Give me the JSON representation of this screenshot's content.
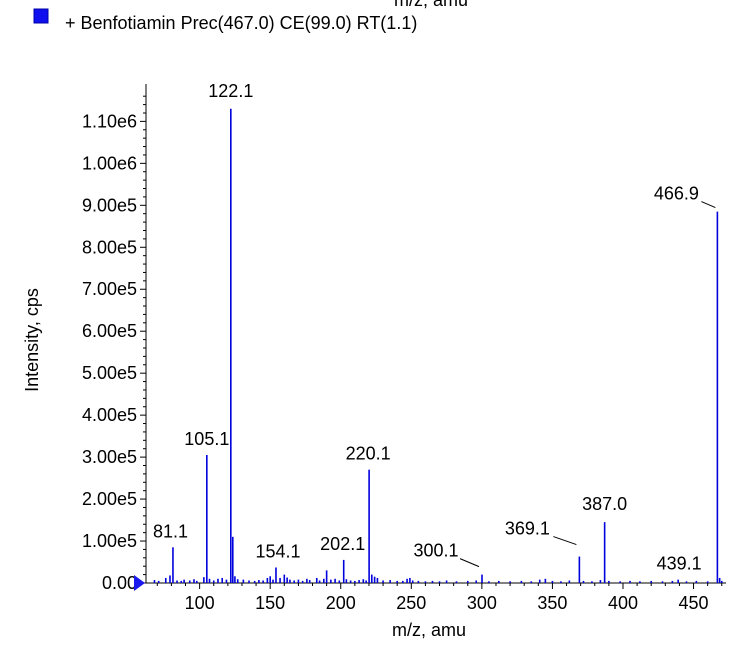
{
  "chart_data": {
    "type": "bar",
    "title_top_fragment": "m/z, amu",
    "legend_entries": [
      "+ Benfotiamin Prec(467.0) CE(99.0) RT(1.1)"
    ],
    "legend_placement": "top-left",
    "xlabel": "m/z, amu",
    "ylabel": "Intensity, cps",
    "xlim": [
      62,
      473
    ],
    "ylim": [
      0,
      1170000
    ],
    "x_ticks": [
      100,
      150,
      200,
      250,
      300,
      350,
      400,
      450
    ],
    "y_tick_labels": [
      "0.00",
      "1.00e5",
      "2.00e5",
      "3.00e5",
      "4.00e5",
      "5.00e5",
      "6.00e5",
      "7.00e5",
      "8.00e5",
      "9.00e5",
      "1.00e6",
      "1.10e6"
    ],
    "grid": false,
    "colors": {
      "series": "#0000dd",
      "axis": "#000000",
      "text": "#000000"
    },
    "labeled_peaks": [
      {
        "label": "81.1",
        "x": 81.1,
        "y": 85000
      },
      {
        "label": "105.1",
        "x": 105.1,
        "y": 305000
      },
      {
        "label": "122.1",
        "x": 122.1,
        "y": 1130000
      },
      {
        "label": "154.1",
        "x": 154.1,
        "y": 37000
      },
      {
        "label": "202.1",
        "x": 202.1,
        "y": 55000
      },
      {
        "label": "220.1",
        "x": 220.1,
        "y": 270000
      },
      {
        "label": "300.1",
        "x": 300.1,
        "y": 20000
      },
      {
        "label": "369.1",
        "x": 369.1,
        "y": 63000
      },
      {
        "label": "387.0",
        "x": 387.0,
        "y": 145000
      },
      {
        "label": "439.1",
        "x": 439.1,
        "y": 8000
      },
      {
        "label": "466.9",
        "x": 466.9,
        "y": 885000
      }
    ],
    "minor_peaks": [
      {
        "x": 68,
        "y": 7000
      },
      {
        "x": 71,
        "y": 5000
      },
      {
        "x": 76,
        "y": 12000
      },
      {
        "x": 79,
        "y": 18000
      },
      {
        "x": 84,
        "y": 6000
      },
      {
        "x": 87,
        "y": 5000
      },
      {
        "x": 89,
        "y": 8000
      },
      {
        "x": 93,
        "y": 6000
      },
      {
        "x": 96,
        "y": 9000
      },
      {
        "x": 98,
        "y": 5000
      },
      {
        "x": 103,
        "y": 14000
      },
      {
        "x": 107,
        "y": 10000
      },
      {
        "x": 110,
        "y": 6000
      },
      {
        "x": 113,
        "y": 10000
      },
      {
        "x": 116,
        "y": 12000
      },
      {
        "x": 119,
        "y": 8000
      },
      {
        "x": 123.5,
        "y": 110000
      },
      {
        "x": 125,
        "y": 16000
      },
      {
        "x": 127,
        "y": 9000
      },
      {
        "x": 131,
        "y": 8000
      },
      {
        "x": 135,
        "y": 6000
      },
      {
        "x": 139,
        "y": 5000
      },
      {
        "x": 142,
        "y": 7000
      },
      {
        "x": 145,
        "y": 6000
      },
      {
        "x": 148,
        "y": 12000
      },
      {
        "x": 150,
        "y": 16000
      },
      {
        "x": 152,
        "y": 8000
      },
      {
        "x": 157,
        "y": 12000
      },
      {
        "x": 160,
        "y": 20000
      },
      {
        "x": 162,
        "y": 13000
      },
      {
        "x": 164,
        "y": 8000
      },
      {
        "x": 167,
        "y": 6000
      },
      {
        "x": 170,
        "y": 8000
      },
      {
        "x": 173,
        "y": 5000
      },
      {
        "x": 176,
        "y": 10000
      },
      {
        "x": 178,
        "y": 7000
      },
      {
        "x": 183,
        "y": 12000
      },
      {
        "x": 185,
        "y": 6000
      },
      {
        "x": 188,
        "y": 10000
      },
      {
        "x": 190,
        "y": 30000
      },
      {
        "x": 193,
        "y": 8000
      },
      {
        "x": 196,
        "y": 10000
      },
      {
        "x": 199,
        "y": 6000
      },
      {
        "x": 204,
        "y": 9000
      },
      {
        "x": 207,
        "y": 6000
      },
      {
        "x": 210,
        "y": 5000
      },
      {
        "x": 213,
        "y": 7000
      },
      {
        "x": 216,
        "y": 9000
      },
      {
        "x": 218,
        "y": 6000
      },
      {
        "x": 222,
        "y": 20000
      },
      {
        "x": 224,
        "y": 15000
      },
      {
        "x": 226,
        "y": 12000
      },
      {
        "x": 230,
        "y": 6000
      },
      {
        "x": 235,
        "y": 7000
      },
      {
        "x": 240,
        "y": 5000
      },
      {
        "x": 244,
        "y": 5000
      },
      {
        "x": 247,
        "y": 10000
      },
      {
        "x": 249,
        "y": 12000
      },
      {
        "x": 251,
        "y": 6000
      },
      {
        "x": 255,
        "y": 5000
      },
      {
        "x": 260,
        "y": 4000
      },
      {
        "x": 265,
        "y": 5000
      },
      {
        "x": 270,
        "y": 4000
      },
      {
        "x": 275,
        "y": 6000
      },
      {
        "x": 282,
        "y": 4000
      },
      {
        "x": 290,
        "y": 5000
      },
      {
        "x": 296,
        "y": 6000
      },
      {
        "x": 305,
        "y": 4000
      },
      {
        "x": 312,
        "y": 5000
      },
      {
        "x": 320,
        "y": 4000
      },
      {
        "x": 328,
        "y": 5000
      },
      {
        "x": 335,
        "y": 4000
      },
      {
        "x": 341,
        "y": 8000
      },
      {
        "x": 345,
        "y": 10000
      },
      {
        "x": 350,
        "y": 5000
      },
      {
        "x": 356,
        "y": 4000
      },
      {
        "x": 362,
        "y": 6000
      },
      {
        "x": 372,
        "y": 5000
      },
      {
        "x": 378,
        "y": 4000
      },
      {
        "x": 384,
        "y": 7000
      },
      {
        "x": 390,
        "y": 5000
      },
      {
        "x": 398,
        "y": 4000
      },
      {
        "x": 405,
        "y": 5000
      },
      {
        "x": 412,
        "y": 4000
      },
      {
        "x": 420,
        "y": 5000
      },
      {
        "x": 428,
        "y": 4000
      },
      {
        "x": 435,
        "y": 5000
      },
      {
        "x": 445,
        "y": 4000
      },
      {
        "x": 452,
        "y": 5000
      },
      {
        "x": 460,
        "y": 4000
      },
      {
        "x": 468.5,
        "y": 12000
      },
      {
        "x": 470,
        "y": 5000
      }
    ]
  }
}
